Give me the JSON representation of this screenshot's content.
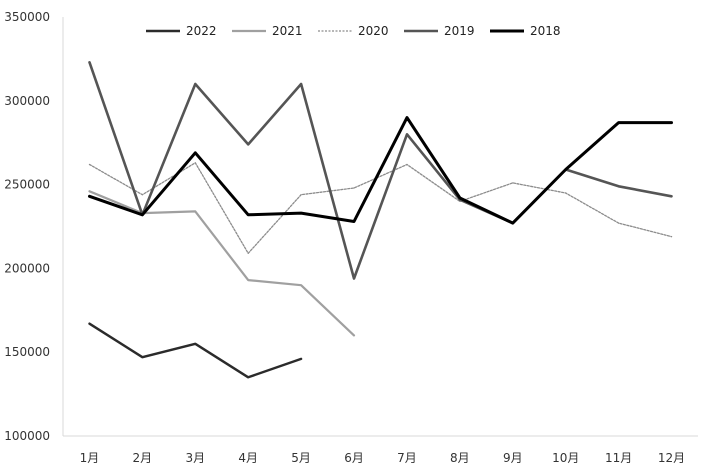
{
  "chart_data": {
    "type": "line",
    "title": "",
    "xlabel": "",
    "ylabel": "",
    "categories": [
      "1月",
      "2月",
      "3月",
      "4月",
      "5月",
      "6月",
      "7月",
      "8月",
      "9月",
      "10月",
      "11月",
      "12月"
    ],
    "ylim": [
      100000,
      350000
    ],
    "yticks": [
      100000,
      150000,
      200000,
      250000,
      300000,
      350000
    ],
    "ytick_labels": [
      "100000",
      "150000",
      "200000",
      "250000",
      "300000",
      "350000"
    ],
    "grid": false,
    "legend_position": "top",
    "series": [
      {
        "name": "2022",
        "color": "#2b2b2b",
        "values": [
          167000,
          147000,
          155000,
          135000,
          146000,
          null,
          null,
          null,
          null,
          null,
          null,
          null
        ]
      },
      {
        "name": "2021",
        "color": "#a0a0a0",
        "values": [
          246000,
          233000,
          234000,
          193000,
          190000,
          160000,
          null,
          null,
          null,
          null,
          null,
          null
        ]
      },
      {
        "name": "2020",
        "color": "#8c8c8c",
        "values": [
          262000,
          244000,
          263000,
          209000,
          244000,
          248000,
          262000,
          240000,
          251000,
          245000,
          227000,
          219000
        ]
      },
      {
        "name": "2019",
        "color": "#555555",
        "values": [
          323000,
          232000,
          310000,
          274000,
          310000,
          194000,
          280000,
          241000,
          227000,
          259000,
          249000,
          243000
        ]
      },
      {
        "name": "2018",
        "color": "#000000",
        "values": [
          243000,
          232000,
          269000,
          232000,
          233000,
          228000,
          290000,
          242000,
          227000,
          259000,
          287000,
          287000
        ]
      }
    ]
  }
}
